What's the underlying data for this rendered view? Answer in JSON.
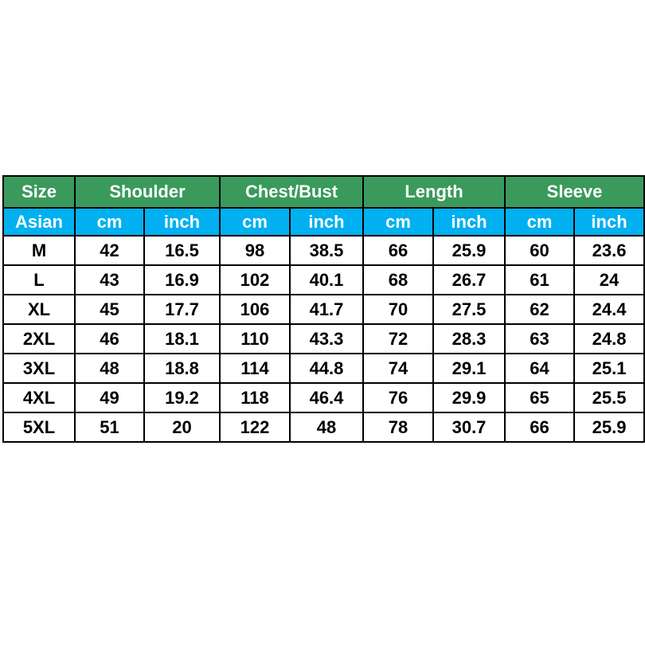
{
  "table": {
    "groups": [
      "Size",
      "Shoulder",
      "Chest/Bust",
      "Length",
      "Sleeve"
    ],
    "units": [
      "Asian",
      "cm",
      "inch",
      "cm",
      "inch",
      "cm",
      "inch",
      "cm",
      "inch"
    ],
    "rows": [
      [
        "M",
        "42",
        "16.5",
        "98",
        "38.5",
        "66",
        "25.9",
        "60",
        "23.6"
      ],
      [
        "L",
        "43",
        "16.9",
        "102",
        "40.1",
        "68",
        "26.7",
        "61",
        "24"
      ],
      [
        "XL",
        "45",
        "17.7",
        "106",
        "41.7",
        "70",
        "27.5",
        "62",
        "24.4"
      ],
      [
        "2XL",
        "46",
        "18.1",
        "110",
        "43.3",
        "72",
        "28.3",
        "63",
        "24.8"
      ],
      [
        "3XL",
        "48",
        "18.8",
        "114",
        "44.8",
        "74",
        "29.1",
        "64",
        "25.1"
      ],
      [
        "4XL",
        "49",
        "19.2",
        "118",
        "46.4",
        "76",
        "29.9",
        "65",
        "25.5"
      ],
      [
        "5XL",
        "51",
        "20",
        "122",
        "48",
        "78",
        "30.7",
        "66",
        "25.9"
      ]
    ]
  }
}
